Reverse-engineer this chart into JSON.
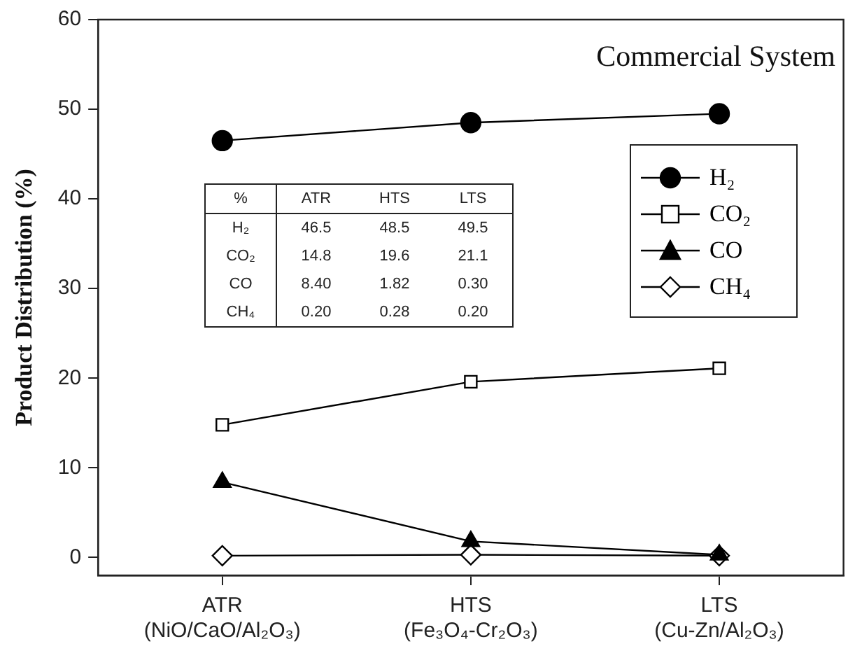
{
  "chart_data": [
    {
      "type": "line",
      "ylabel": "Product Distribution (%)",
      "categories": [
        "ATR\n(NiO/CaO/Al₂O₃)",
        "HTS\n(Fe₃O₄-Cr₂O₃)",
        "LTS\n(Cu-Zn/Al₂O₃)"
      ],
      "series": [
        {
          "name": "H₂",
          "color": "#000000",
          "marker": "circle",
          "values": [
            46.5,
            48.5,
            49.5
          ]
        },
        {
          "name": "CO₂",
          "color": "#000000",
          "marker": "square",
          "values": [
            14.8,
            19.6,
            21.1
          ]
        },
        {
          "name": "CO",
          "color": "#000000",
          "marker": "triangle",
          "values": [
            8.4,
            1.8,
            0.3
          ]
        },
        {
          "name": "CH₄",
          "color": "#000000",
          "marker": "diamond",
          "values": [
            0.2,
            0.3,
            0.2
          ]
        }
      ],
      "ylim": [
        -2,
        60
      ],
      "yticks": [
        0,
        10,
        20,
        30,
        40,
        50,
        60
      ],
      "grid": false,
      "legend": "right",
      "line_style": "solid",
      "annotations": [
        "Commercial System"
      ]
    },
    {
      "type": "heatmap",
      "categories": [
        "ATR",
        "HTS",
        "LTS"
      ],
      "y_categories": [
        "H₂",
        "CO₂",
        "CO",
        "CH₄"
      ],
      "cells": [
        [
          46.5,
          48.5,
          49.5
        ],
        [
          14.8,
          19.6,
          21.1
        ],
        [
          8.4,
          1.82,
          0.3
        ],
        [
          0.2,
          0.28,
          0.2
        ]
      ],
      "cell_labels": [
        [
          "46.5",
          "48.5",
          "49.5"
        ],
        [
          "14.8",
          "19.6",
          "21.1"
        ],
        [
          "8.40",
          "1.82",
          "0.30"
        ],
        [
          "0.20",
          "0.28",
          "0.20"
        ]
      ],
      "annotations": [
        "%"
      ]
    }
  ]
}
